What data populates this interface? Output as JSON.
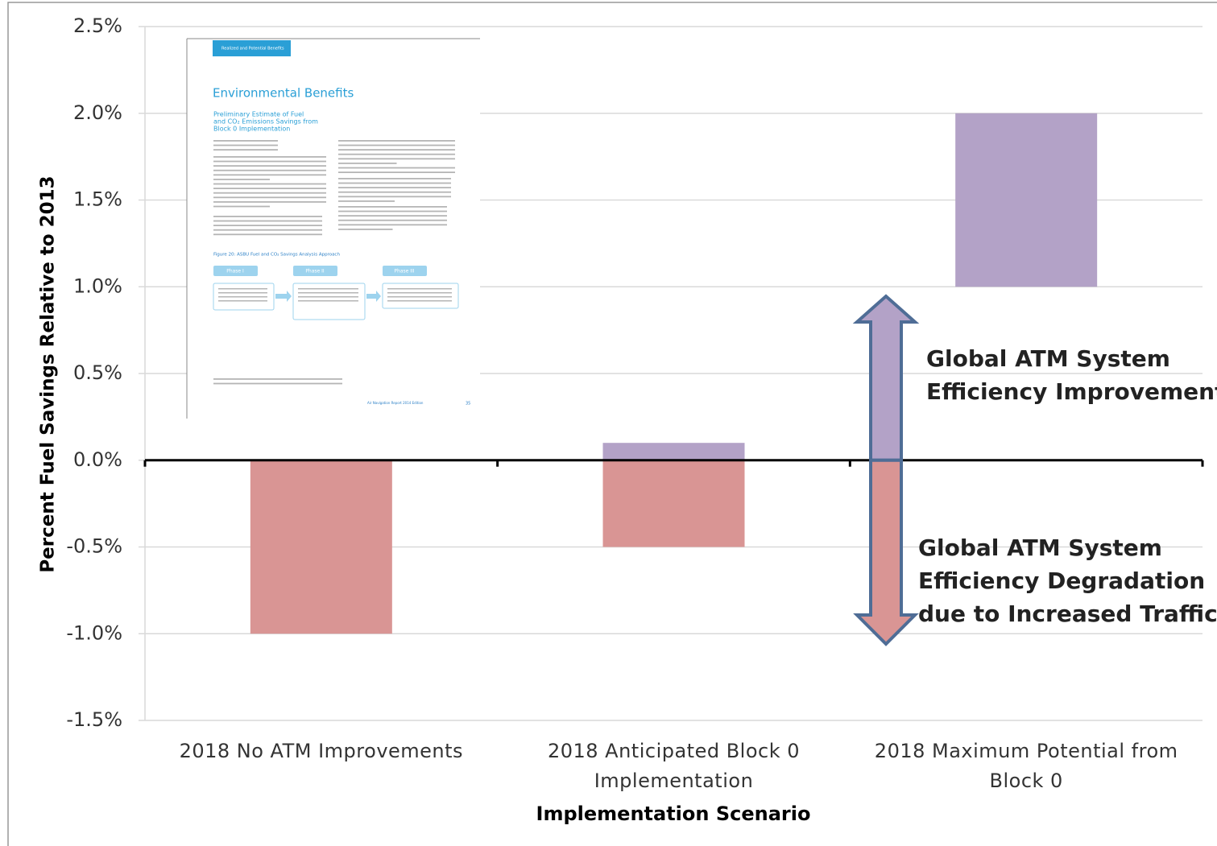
{
  "chart_data": {
    "type": "bar",
    "categories": [
      "2018 No ATM Improvements",
      "2018 Anticipated Block 0 Implementation",
      "2018 Maximum Potential from Block 0"
    ],
    "series": [
      {
        "color": "#d99594",
        "values": [
          -1.0,
          -0.5,
          null
        ]
      },
      {
        "color": "#b3a2c7",
        "starts": [
          null,
          0,
          1.0
        ],
        "values": [
          null,
          0.1,
          1.0
        ]
      }
    ],
    "ylim": [
      -1.5,
      2.5
    ],
    "yticks": [
      {
        "value": -1.5,
        "label": "-1.5%"
      },
      {
        "value": -1.0,
        "label": "-1.0%"
      },
      {
        "value": -0.5,
        "label": "-0.5%"
      },
      {
        "value": 0,
        "label": "0.0%"
      },
      {
        "value": 0.5,
        "label": "0.5%"
      },
      {
        "value": 1.0,
        "label": "1.0%"
      },
      {
        "value": 1.5,
        "label": "1.5%"
      },
      {
        "value": 2.0,
        "label": "2.0%"
      },
      {
        "value": 2.5,
        "label": "2.5%"
      }
    ],
    "grid": true,
    "ylabel": "Percent Fuel Savings Relative to 2013",
    "xlabel": "Implementation Scenario",
    "annotations": [
      {
        "lines": [
          "Global ATM System",
          "Efficiency Improvement"
        ]
      },
      {
        "lines": [
          "Global ATM System",
          "Efficiency Degradation",
          "due to Increased Traffic"
        ]
      }
    ]
  },
  "inset": {
    "tab": "Realized and Potential Benefits",
    "title": "Environmental Benefits",
    "subtitle": [
      "Preliminary Estimate of Fuel",
      "and CO₂ Emissions Savings from",
      "Block 0 Implementation"
    ],
    "figure": "Figure 20: ASBU Fuel and CO₂ Savings Analysis Approach",
    "phases": [
      "Phase I",
      "Phase II",
      "Phase III"
    ],
    "footer": "Air Navigation Report 2014 Edition",
    "page": "35"
  }
}
